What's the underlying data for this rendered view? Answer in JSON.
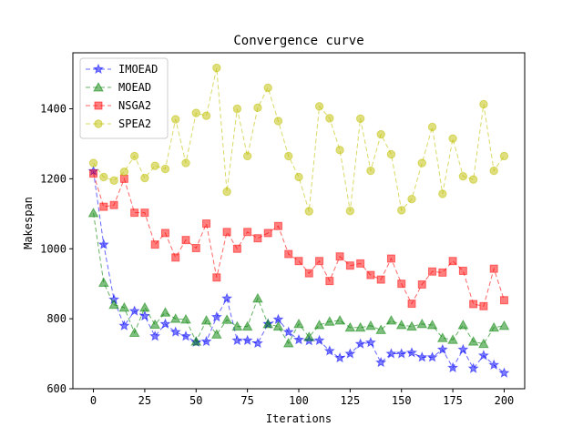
{
  "chart_data": {
    "type": "line",
    "title": "Convergence curve",
    "xlabel": "Iterations",
    "ylabel": "Makespan",
    "xlim": [
      -10,
      210
    ],
    "ylim": [
      600,
      1560
    ],
    "xticks": [
      0,
      25,
      50,
      75,
      100,
      125,
      150,
      175,
      200
    ],
    "yticks": [
      600,
      800,
      1000,
      1200,
      1400
    ],
    "grid": false,
    "legend_position": "top-left",
    "x": [
      0,
      5,
      10,
      15,
      20,
      25,
      30,
      35,
      40,
      45,
      50,
      55,
      60,
      65,
      70,
      75,
      80,
      85,
      90,
      95,
      100,
      105,
      110,
      115,
      120,
      125,
      130,
      135,
      140,
      145,
      150,
      155,
      160,
      165,
      170,
      175,
      180,
      185,
      190,
      195,
      200
    ],
    "series": [
      {
        "name": "IMOEAD",
        "color": "#0000ff",
        "marker": "star",
        "values": [
          1222,
          1012,
          855,
          780,
          822,
          808,
          750,
          785,
          762,
          750,
          733,
          735,
          805,
          858,
          738,
          738,
          730,
          785,
          798,
          762,
          740,
          737,
          738,
          708,
          688,
          700,
          728,
          732,
          675,
          700,
          700,
          703,
          690,
          690,
          712,
          660,
          712,
          658,
          695,
          668,
          645
        ]
      },
      {
        "name": "MOEAD",
        "color": "#008000",
        "marker": "triangle",
        "values": [
          1102,
          903,
          840,
          832,
          760,
          832,
          783,
          818,
          800,
          798,
          735,
          795,
          755,
          797,
          778,
          778,
          858,
          785,
          778,
          730,
          785,
          748,
          782,
          792,
          795,
          775,
          775,
          780,
          768,
          795,
          782,
          778,
          785,
          782,
          745,
          740,
          782,
          735,
          728,
          775,
          780
        ]
      },
      {
        "name": "NSGA2",
        "color": "#ff0000",
        "marker": "square",
        "values": [
          1215,
          1120,
          1125,
          1200,
          1103,
          1103,
          1012,
          1045,
          975,
          1025,
          1002,
          1072,
          918,
          1048,
          1000,
          1048,
          1030,
          1045,
          1065,
          985,
          965,
          930,
          965,
          908,
          978,
          952,
          958,
          925,
          912,
          972,
          900,
          843,
          898,
          935,
          932,
          965,
          937,
          842,
          836,
          943,
          853
        ]
      },
      {
        "name": "SPEA2",
        "color": "#bfbf00",
        "marker": "circle",
        "values": [
          1245,
          1205,
          1195,
          1220,
          1265,
          1202,
          1237,
          1228,
          1370,
          1245,
          1388,
          1380,
          1517,
          1163,
          1400,
          1265,
          1403,
          1460,
          1365,
          1265,
          1205,
          1107,
          1407,
          1373,
          1282,
          1108,
          1372,
          1223,
          1327,
          1270,
          1110,
          1142,
          1245,
          1348,
          1157,
          1315,
          1207,
          1198,
          1413,
          1223,
          1265
        ]
      }
    ]
  }
}
